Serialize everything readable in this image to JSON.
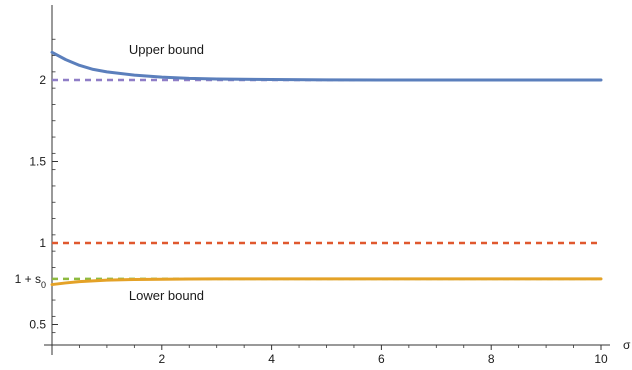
{
  "chart_data": {
    "type": "line",
    "title": "",
    "xlabel": "σ",
    "ylabel": "",
    "xlim": [
      0,
      10
    ],
    "ylim": [
      0.4,
      2.4
    ],
    "grid": false,
    "x_ticks": [
      2,
      4,
      6,
      8,
      10
    ],
    "x_tick_labels": [
      "2",
      "4",
      "6",
      "8",
      "10"
    ],
    "y_ticks": [
      0.5,
      1,
      1.5,
      2
    ],
    "y_tick_labels": [
      "0.5",
      "1",
      "1.5",
      "2"
    ],
    "s0_value": 0.78,
    "s0_label": "1 + s",
    "s0_subscript": "0",
    "series": [
      {
        "color": "#5b7fbc",
        "style": "solid",
        "label": "Upper bound",
        "x": [
          0,
          0.25,
          0.5,
          0.75,
          1,
          1.5,
          2,
          2.5,
          3,
          4,
          5,
          6,
          7,
          8,
          9,
          10
        ],
        "y": [
          2.17,
          2.125,
          2.09,
          2.065,
          2.05,
          2.03,
          2.018,
          2.01,
          2.006,
          2.003,
          2.001,
          2.0,
          2.0,
          2.0,
          2.0,
          2.0
        ]
      },
      {
        "color": "#e4a227",
        "style": "solid",
        "label": "Lower bound",
        "x": [
          0,
          0.25,
          0.5,
          0.75,
          1,
          1.5,
          2,
          2.5,
          3,
          4,
          5,
          6,
          7,
          8,
          9,
          10
        ],
        "y": [
          0.745,
          0.755,
          0.763,
          0.768,
          0.772,
          0.776,
          0.778,
          0.779,
          0.78,
          0.78,
          0.78,
          0.78,
          0.78,
          0.78,
          0.78,
          0.78
        ]
      },
      {
        "color": "#8f7ec7",
        "style": "dashed",
        "x": [
          0,
          10
        ],
        "y": [
          2,
          2
        ]
      },
      {
        "color": "#e0582e",
        "style": "dashed",
        "x": [
          0,
          10
        ],
        "y": [
          1,
          1
        ]
      },
      {
        "color": "#8dba3f",
        "style": "dashed",
        "x": [
          0,
          10
        ],
        "y": [
          0.78,
          0.78
        ]
      }
    ],
    "annotations": [
      {
        "text": "Upper bound",
        "x": 1.4,
        "y": 2.16
      },
      {
        "text": "Lower bound",
        "x": 1.4,
        "y": 0.65
      }
    ]
  }
}
